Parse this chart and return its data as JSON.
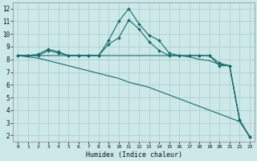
{
  "xlabel": "Humidex (Indice chaleur)",
  "background_color": "#cce8e8",
  "grid_color": "#aacccc",
  "line_color": "#1a6b6b",
  "xlim": [
    -0.5,
    23.5
  ],
  "ylim": [
    1.5,
    12.5
  ],
  "xticks": [
    0,
    1,
    2,
    3,
    4,
    5,
    6,
    7,
    8,
    9,
    10,
    11,
    12,
    13,
    14,
    15,
    16,
    17,
    18,
    19,
    20,
    21,
    22,
    23
  ],
  "yticks": [
    2,
    3,
    4,
    5,
    6,
    7,
    8,
    9,
    10,
    11,
    12
  ],
  "lines": [
    {
      "x": [
        0,
        1,
        2,
        3,
        4,
        5,
        6,
        7,
        8,
        9,
        10,
        11,
        12,
        13,
        14,
        15,
        16,
        17,
        18,
        19,
        20,
        21,
        22,
        23
      ],
      "y": [
        8.3,
        8.3,
        8.3,
        8.7,
        8.5,
        8.3,
        8.3,
        8.3,
        8.3,
        9.5,
        11.0,
        12.0,
        10.8,
        9.9,
        9.5,
        8.5,
        8.3,
        8.3,
        8.3,
        8.3,
        7.5,
        7.5,
        3.2,
        1.9
      ],
      "marker": "D",
      "markersize": 2.0,
      "linewidth": 0.8
    },
    {
      "x": [
        0,
        1,
        2,
        3,
        4,
        5,
        6,
        7,
        8,
        9,
        10,
        11,
        12,
        13,
        14,
        15,
        16,
        17,
        18,
        19,
        20,
        21,
        22,
        23
      ],
      "y": [
        8.3,
        8.3,
        8.4,
        8.8,
        8.6,
        8.3,
        8.3,
        8.3,
        8.3,
        9.2,
        9.7,
        11.1,
        10.4,
        9.4,
        8.7,
        8.3,
        8.3,
        8.3,
        8.3,
        8.3,
        7.7,
        7.5,
        3.2,
        1.9
      ],
      "marker": "D",
      "markersize": 2.0,
      "linewidth": 0.8
    },
    {
      "x": [
        0,
        1,
        2,
        3,
        4,
        5,
        6,
        7,
        8,
        9,
        10,
        11,
        12,
        13,
        14,
        15,
        16,
        17,
        18,
        19,
        20,
        21,
        22,
        23
      ],
      "y": [
        8.3,
        8.3,
        8.3,
        8.3,
        8.3,
        8.3,
        8.3,
        8.3,
        8.3,
        8.3,
        8.3,
        8.3,
        8.3,
        8.3,
        8.3,
        8.3,
        8.3,
        8.2,
        8.0,
        7.9,
        7.6,
        7.5,
        3.2,
        1.9
      ],
      "marker": null,
      "markersize": 0,
      "linewidth": 0.8
    },
    {
      "x": [
        0,
        1,
        2,
        3,
        4,
        5,
        6,
        7,
        8,
        9,
        10,
        11,
        12,
        13,
        14,
        15,
        16,
        17,
        18,
        19,
        20,
        21,
        22,
        23
      ],
      "y": [
        8.3,
        8.2,
        8.1,
        7.9,
        7.7,
        7.5,
        7.3,
        7.1,
        6.9,
        6.7,
        6.5,
        6.2,
        6.0,
        5.8,
        5.5,
        5.2,
        4.9,
        4.6,
        4.3,
        4.0,
        3.7,
        3.4,
        3.1,
        1.9
      ],
      "marker": null,
      "markersize": 0,
      "linewidth": 0.8
    }
  ]
}
